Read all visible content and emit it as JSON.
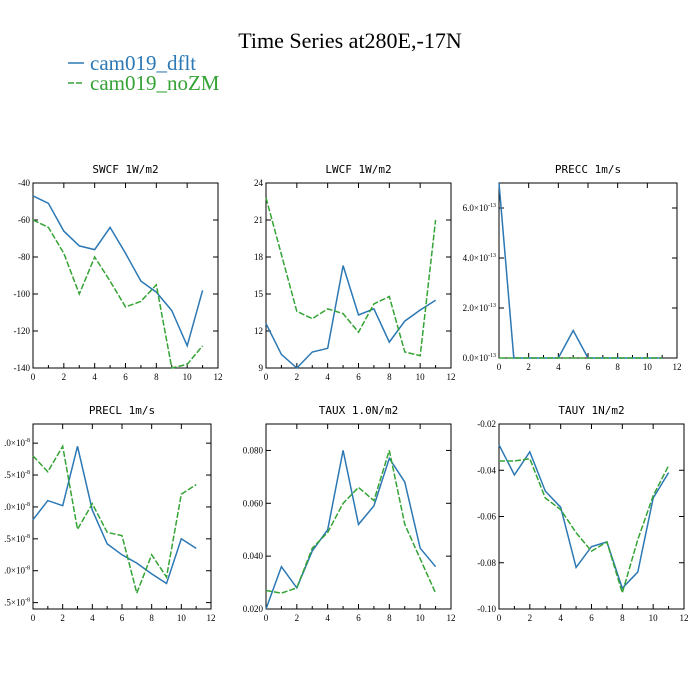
{
  "figure_title": "Time Series at280E,-17N",
  "colors": {
    "dflt": "#2b78b4",
    "noZM": "#35a335"
  },
  "legend": [
    {
      "label": "cam019_dflt",
      "color": "#2b78b4",
      "dashed": false
    },
    {
      "label": "cam019_noZM",
      "color": "#35a335",
      "dashed": true
    }
  ],
  "chart_data": [
    {
      "type": "line",
      "title": "SWCF   1W/m2",
      "x": [
        0,
        1,
        2,
        3,
        4,
        5,
        6,
        7,
        8,
        9,
        10,
        11
      ],
      "xlim": [
        0,
        12
      ],
      "xticks": [
        "0",
        "2",
        "4",
        "6",
        "8",
        "10",
        "12"
      ],
      "ylim": [
        -140,
        -40
      ],
      "yticks": [
        "-140",
        "-120",
        "-100",
        "-80",
        "-60",
        "-40"
      ],
      "series": [
        {
          "name": "cam019_dflt",
          "values": [
            -47,
            -51,
            -66,
            -74,
            -76,
            -64,
            -78,
            -93,
            -99,
            -109,
            -128,
            -98
          ]
        },
        {
          "name": "cam019_noZM",
          "values": [
            -60,
            -64,
            -78,
            -100,
            -80,
            -93,
            -107,
            -104,
            -95,
            -140,
            -138,
            -128
          ]
        }
      ]
    },
    {
      "type": "line",
      "title": "LWCF   1W/m2",
      "x": [
        0,
        1,
        2,
        3,
        4,
        5,
        6,
        7,
        8,
        9,
        10,
        11
      ],
      "xlim": [
        0,
        12
      ],
      "xticks": [
        "0",
        "2",
        "4",
        "6",
        "8",
        "10",
        "12"
      ],
      "ylim": [
        9,
        24
      ],
      "yticks": [
        "9",
        "12",
        "15",
        "18",
        "21",
        "24"
      ],
      "series": [
        {
          "name": "cam019_dflt",
          "values": [
            12.6,
            10.1,
            9.0,
            10.3,
            10.6,
            17.3,
            13.3,
            13.8,
            11.1,
            12.8,
            13.7,
            14.5
          ]
        },
        {
          "name": "cam019_noZM",
          "values": [
            22.8,
            18.2,
            13.6,
            13.0,
            13.8,
            13.4,
            11.9,
            14.2,
            14.8,
            10.3,
            10.0,
            21.0
          ]
        }
      ]
    },
    {
      "type": "line",
      "title": "PRECC   1m/s",
      "x": [
        0,
        1,
        2,
        3,
        4,
        5,
        6,
        7,
        8,
        9,
        10,
        11
      ],
      "xlim": [
        0,
        12
      ],
      "xticks": [
        "0",
        "2",
        "4",
        "6",
        "8",
        "10",
        "12"
      ],
      "ylim": [
        0,
        7e-13
      ],
      "ytick_values": [
        0,
        2e-13,
        4e-13,
        6e-13
      ],
      "ytick_mantissa": [
        "0.0×10",
        "2.0×10",
        "4.0×10",
        "6.0×10"
      ],
      "ytick_exponent": "-13",
      "series": [
        {
          "name": "cam019_dflt",
          "values": [
            7e-13,
            0,
            0,
            0,
            0,
            1.1e-13,
            0,
            0,
            0,
            0,
            0,
            0
          ]
        },
        {
          "name": "cam019_noZM",
          "values": [
            0,
            0,
            0,
            0,
            0,
            0,
            0,
            0,
            0,
            0,
            0,
            0
          ]
        }
      ]
    },
    {
      "type": "line",
      "title": "PRECL   1m/s",
      "x": [
        0,
        1,
        2,
        3,
        4,
        5,
        6,
        7,
        8,
        9,
        10,
        11
      ],
      "xlim": [
        0,
        12
      ],
      "xticks": [
        "0",
        "2",
        "4",
        "6",
        "8",
        "10",
        "12"
      ],
      "ylim": [
        0.7,
        3.6
      ],
      "ytick_values": [
        0.8,
        1.3,
        1.8,
        2.3,
        2.8,
        3.3
      ],
      "ytick_mantissa": [
        ".5×10",
        ".0×10",
        ".5×10",
        ".0×10",
        ".5×10",
        ".0×10"
      ],
      "ytick_exponent": "-8",
      "series": [
        {
          "name": "cam019_dflt",
          "values": [
            2.1,
            2.4,
            2.32,
            3.25,
            2.25,
            1.72,
            1.55,
            1.42,
            1.25,
            1.1,
            1.8,
            1.65
          ]
        },
        {
          "name": "cam019_noZM",
          "values": [
            3.1,
            2.85,
            3.25,
            1.95,
            2.35,
            1.9,
            1.85,
            0.95,
            1.55,
            1.2,
            2.5,
            2.65
          ]
        }
      ]
    },
    {
      "type": "line",
      "title": "TAUX   1.0N/m2",
      "x": [
        0,
        1,
        2,
        3,
        4,
        5,
        6,
        7,
        8,
        9,
        10,
        11
      ],
      "xlim": [
        0,
        12
      ],
      "xticks": [
        "0",
        "2",
        "4",
        "6",
        "8",
        "10",
        "12"
      ],
      "ylim": [
        0.02,
        0.09
      ],
      "yticks": [
        "0.020",
        "0.040",
        "0.060",
        "0.080"
      ],
      "ytick_values": [
        0.02,
        0.04,
        0.06,
        0.08
      ],
      "series": [
        {
          "name": "cam019_dflt",
          "values": [
            0.02,
            0.036,
            0.028,
            0.042,
            0.05,
            0.08,
            0.052,
            0.059,
            0.077,
            0.068,
            0.043,
            0.036
          ]
        },
        {
          "name": "cam019_noZM",
          "values": [
            0.027,
            0.026,
            0.028,
            0.043,
            0.049,
            0.06,
            0.066,
            0.061,
            0.08,
            0.052,
            0.039,
            0.026
          ]
        }
      ]
    },
    {
      "type": "line",
      "title": "TAUY   1N/m2",
      "x": [
        0,
        1,
        2,
        3,
        4,
        5,
        6,
        7,
        8,
        9,
        10,
        11
      ],
      "xlim": [
        0,
        12
      ],
      "xticks": [
        "0",
        "2",
        "4",
        "6",
        "8",
        "10",
        "12"
      ],
      "ylim": [
        -0.1,
        -0.02
      ],
      "yticks": [
        "-0.10",
        "-0.08",
        "-0.06",
        "-0.04",
        "-0.02"
      ],
      "ytick_values": [
        -0.1,
        -0.08,
        -0.06,
        -0.04,
        -0.02
      ],
      "series": [
        {
          "name": "cam019_dflt",
          "values": [
            -0.029,
            -0.042,
            -0.032,
            -0.049,
            -0.056,
            -0.082,
            -0.073,
            -0.071,
            -0.091,
            -0.084,
            -0.052,
            -0.041
          ]
        },
        {
          "name": "cam019_noZM",
          "values": [
            -0.036,
            -0.036,
            -0.035,
            -0.052,
            -0.057,
            -0.067,
            -0.075,
            -0.071,
            -0.093,
            -0.07,
            -0.051,
            -0.038
          ]
        }
      ]
    }
  ]
}
